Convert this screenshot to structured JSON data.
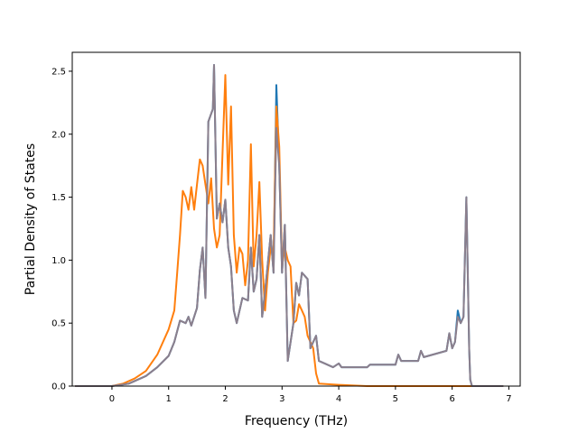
{
  "chart_data": {
    "type": "line",
    "title": "",
    "xlabel": "Frequency (THz)",
    "ylabel": "Partial Density of States",
    "xlim": [
      -0.7,
      7.2
    ],
    "ylim": [
      0,
      2.65
    ],
    "grid": false,
    "legend": "none",
    "x_ticks": [
      {
        "value": 0,
        "label": "0"
      },
      {
        "value": 1,
        "label": "1"
      },
      {
        "value": 2,
        "label": "2"
      },
      {
        "value": 3,
        "label": "3"
      },
      {
        "value": 4,
        "label": "4"
      },
      {
        "value": 5,
        "label": "5"
      },
      {
        "value": 6,
        "label": "6"
      },
      {
        "value": 7,
        "label": "7"
      }
    ],
    "y_ticks": [
      {
        "value": 0.0,
        "label": "0.0"
      },
      {
        "value": 0.5,
        "label": "0.5"
      },
      {
        "value": 1.0,
        "label": "1.0"
      },
      {
        "value": 1.5,
        "label": "1.5"
      },
      {
        "value": 2.0,
        "label": "2.0"
      },
      {
        "value": 2.5,
        "label": "2.5"
      }
    ],
    "series": [
      {
        "color": "#1f77b4",
        "points": [
          [
            -0.65,
            0
          ],
          [
            0,
            0
          ],
          [
            0.3,
            0.02
          ],
          [
            0.6,
            0.08
          ],
          [
            0.8,
            0.15
          ],
          [
            1.0,
            0.24
          ],
          [
            1.1,
            0.35
          ],
          [
            1.2,
            0.52
          ],
          [
            1.3,
            0.5
          ],
          [
            1.35,
            0.55
          ],
          [
            1.4,
            0.48
          ],
          [
            1.5,
            0.62
          ],
          [
            1.55,
            0.92
          ],
          [
            1.6,
            1.1
          ],
          [
            1.65,
            0.7
          ],
          [
            1.7,
            2.1
          ],
          [
            1.78,
            2.2
          ],
          [
            1.8,
            2.55
          ],
          [
            1.85,
            1.33
          ],
          [
            1.9,
            1.45
          ],
          [
            1.95,
            1.3
          ],
          [
            2.0,
            1.48
          ],
          [
            2.05,
            1.1
          ],
          [
            2.1,
            0.95
          ],
          [
            2.15,
            0.6
          ],
          [
            2.2,
            0.5
          ],
          [
            2.3,
            0.7
          ],
          [
            2.4,
            0.68
          ],
          [
            2.45,
            1.1
          ],
          [
            2.5,
            0.75
          ],
          [
            2.55,
            0.85
          ],
          [
            2.6,
            1.2
          ],
          [
            2.65,
            0.55
          ],
          [
            2.7,
            0.75
          ],
          [
            2.8,
            1.2
          ],
          [
            2.85,
            0.9
          ],
          [
            2.9,
            2.39
          ],
          [
            2.95,
            1.75
          ],
          [
            3.0,
            0.9
          ],
          [
            3.05,
            1.28
          ],
          [
            3.1,
            0.2
          ],
          [
            3.2,
            0.5
          ],
          [
            3.25,
            0.82
          ],
          [
            3.3,
            0.72
          ],
          [
            3.35,
            0.9
          ],
          [
            3.45,
            0.85
          ],
          [
            3.5,
            0.3
          ],
          [
            3.55,
            0.35
          ],
          [
            3.6,
            0.4
          ],
          [
            3.65,
            0.2
          ],
          [
            3.9,
            0.15
          ],
          [
            4.0,
            0.18
          ],
          [
            4.05,
            0.15
          ],
          [
            4.5,
            0.15
          ],
          [
            4.55,
            0.17
          ],
          [
            5.0,
            0.17
          ],
          [
            5.05,
            0.25
          ],
          [
            5.1,
            0.2
          ],
          [
            5.4,
            0.2
          ],
          [
            5.45,
            0.28
          ],
          [
            5.5,
            0.23
          ],
          [
            5.9,
            0.28
          ],
          [
            5.95,
            0.42
          ],
          [
            6.0,
            0.3
          ],
          [
            6.05,
            0.35
          ],
          [
            6.1,
            0.6
          ],
          [
            6.15,
            0.5
          ],
          [
            6.2,
            0.55
          ],
          [
            6.25,
            1.5
          ],
          [
            6.3,
            0.3
          ],
          [
            6.32,
            0.05
          ],
          [
            6.35,
            0
          ],
          [
            6.9,
            0
          ]
        ]
      },
      {
        "color": "#ff7f0e",
        "points": [
          [
            -0.65,
            0
          ],
          [
            0,
            0
          ],
          [
            0.2,
            0.02
          ],
          [
            0.4,
            0.06
          ],
          [
            0.6,
            0.12
          ],
          [
            0.8,
            0.25
          ],
          [
            1.0,
            0.45
          ],
          [
            1.1,
            0.6
          ],
          [
            1.15,
            0.9
          ],
          [
            1.2,
            1.2
          ],
          [
            1.25,
            1.55
          ],
          [
            1.3,
            1.5
          ],
          [
            1.35,
            1.4
          ],
          [
            1.4,
            1.58
          ],
          [
            1.45,
            1.4
          ],
          [
            1.5,
            1.6
          ],
          [
            1.55,
            1.8
          ],
          [
            1.6,
            1.75
          ],
          [
            1.65,
            1.6
          ],
          [
            1.7,
            1.45
          ],
          [
            1.75,
            1.65
          ],
          [
            1.8,
            1.25
          ],
          [
            1.85,
            1.1
          ],
          [
            1.9,
            1.2
          ],
          [
            1.95,
            1.85
          ],
          [
            2.0,
            2.47
          ],
          [
            2.05,
            1.6
          ],
          [
            2.1,
            2.22
          ],
          [
            2.15,
            1.2
          ],
          [
            2.2,
            0.9
          ],
          [
            2.25,
            1.1
          ],
          [
            2.3,
            1.05
          ],
          [
            2.35,
            0.8
          ],
          [
            2.4,
            1.0
          ],
          [
            2.45,
            1.92
          ],
          [
            2.5,
            0.95
          ],
          [
            2.55,
            1.2
          ],
          [
            2.6,
            1.62
          ],
          [
            2.65,
            1.0
          ],
          [
            2.7,
            0.6
          ],
          [
            2.75,
            0.9
          ],
          [
            2.8,
            1.1
          ],
          [
            2.85,
            1.05
          ],
          [
            2.9,
            2.22
          ],
          [
            2.95,
            1.9
          ],
          [
            3.0,
            0.95
          ],
          [
            3.05,
            1.1
          ],
          [
            3.1,
            1.0
          ],
          [
            3.15,
            0.95
          ],
          [
            3.2,
            0.5
          ],
          [
            3.25,
            0.52
          ],
          [
            3.3,
            0.65
          ],
          [
            3.35,
            0.6
          ],
          [
            3.4,
            0.55
          ],
          [
            3.45,
            0.4
          ],
          [
            3.5,
            0.35
          ],
          [
            3.55,
            0.3
          ],
          [
            3.6,
            0.1
          ],
          [
            3.65,
            0.02
          ],
          [
            4.0,
            0.01
          ],
          [
            4.5,
            0
          ],
          [
            6.9,
            0
          ]
        ]
      },
      {
        "color": "#8c7f8c",
        "points": [
          [
            -0.65,
            0
          ],
          [
            0,
            0
          ],
          [
            0.3,
            0.02
          ],
          [
            0.6,
            0.08
          ],
          [
            0.8,
            0.15
          ],
          [
            1.0,
            0.24
          ],
          [
            1.1,
            0.35
          ],
          [
            1.2,
            0.52
          ],
          [
            1.3,
            0.5
          ],
          [
            1.35,
            0.55
          ],
          [
            1.4,
            0.48
          ],
          [
            1.5,
            0.62
          ],
          [
            1.55,
            0.92
          ],
          [
            1.6,
            1.1
          ],
          [
            1.65,
            0.7
          ],
          [
            1.7,
            2.1
          ],
          [
            1.78,
            2.2
          ],
          [
            1.8,
            2.55
          ],
          [
            1.85,
            1.33
          ],
          [
            1.9,
            1.45
          ],
          [
            1.95,
            1.3
          ],
          [
            2.0,
            1.48
          ],
          [
            2.05,
            1.1
          ],
          [
            2.1,
            0.95
          ],
          [
            2.15,
            0.6
          ],
          [
            2.2,
            0.5
          ],
          [
            2.3,
            0.7
          ],
          [
            2.4,
            0.68
          ],
          [
            2.45,
            1.1
          ],
          [
            2.5,
            0.75
          ],
          [
            2.55,
            0.85
          ],
          [
            2.6,
            1.2
          ],
          [
            2.65,
            0.55
          ],
          [
            2.7,
            0.75
          ],
          [
            2.8,
            1.2
          ],
          [
            2.85,
            0.9
          ],
          [
            2.9,
            2.05
          ],
          [
            2.95,
            1.75
          ],
          [
            3.0,
            0.9
          ],
          [
            3.05,
            1.28
          ],
          [
            3.1,
            0.2
          ],
          [
            3.2,
            0.5
          ],
          [
            3.25,
            0.82
          ],
          [
            3.3,
            0.72
          ],
          [
            3.35,
            0.9
          ],
          [
            3.45,
            0.85
          ],
          [
            3.5,
            0.3
          ],
          [
            3.55,
            0.35
          ],
          [
            3.6,
            0.4
          ],
          [
            3.65,
            0.2
          ],
          [
            3.9,
            0.15
          ],
          [
            4.0,
            0.18
          ],
          [
            4.05,
            0.15
          ],
          [
            4.5,
            0.15
          ],
          [
            4.55,
            0.17
          ],
          [
            5.0,
            0.17
          ],
          [
            5.05,
            0.25
          ],
          [
            5.1,
            0.2
          ],
          [
            5.4,
            0.2
          ],
          [
            5.45,
            0.28
          ],
          [
            5.5,
            0.23
          ],
          [
            5.9,
            0.28
          ],
          [
            5.95,
            0.42
          ],
          [
            6.0,
            0.3
          ],
          [
            6.05,
            0.35
          ],
          [
            6.1,
            0.55
          ],
          [
            6.15,
            0.5
          ],
          [
            6.2,
            0.55
          ],
          [
            6.25,
            1.5
          ],
          [
            6.3,
            0.3
          ],
          [
            6.32,
            0.05
          ],
          [
            6.35,
            0
          ],
          [
            6.9,
            0
          ]
        ]
      }
    ]
  }
}
